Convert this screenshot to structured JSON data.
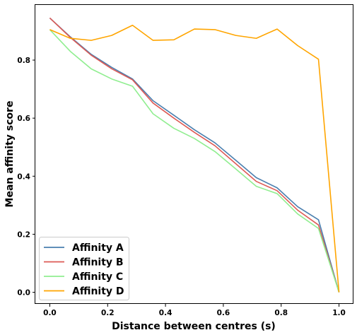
{
  "chart_data": {
    "type": "line",
    "xlabel": "Distance between centres (s)",
    "ylabel": "Mean affinity score",
    "xlim": [
      -0.05,
      1.05
    ],
    "ylim": [
      -0.04,
      0.99
    ],
    "xticks": [
      0.0,
      0.2,
      0.4,
      0.6,
      0.8,
      1.0
    ],
    "xtick_labels": [
      "0.0",
      "0.2",
      "0.4",
      "0.6",
      "0.8",
      "1.0"
    ],
    "yticks": [
      0.0,
      0.2,
      0.4,
      0.6,
      0.8
    ],
    "ytick_labels": [
      "0.0",
      "0.2",
      "0.4",
      "0.6",
      "0.8"
    ],
    "grid": false,
    "legend_position": "lower-left",
    "x": [
      0.0,
      0.071,
      0.143,
      0.214,
      0.286,
      0.357,
      0.429,
      0.5,
      0.571,
      0.643,
      0.714,
      0.786,
      0.857,
      0.929,
      1.0
    ],
    "series": [
      {
        "name": "Affinity A",
        "color": "#4a7faf",
        "values": [
          0.945,
          0.88,
          0.82,
          0.775,
          0.735,
          0.66,
          0.61,
          0.56,
          0.515,
          0.455,
          0.395,
          0.36,
          0.295,
          0.25,
          0.0
        ]
      },
      {
        "name": "Affinity B",
        "color": "#dd5a55",
        "values": [
          0.945,
          0.878,
          0.817,
          0.77,
          0.732,
          0.652,
          0.6,
          0.551,
          0.505,
          0.443,
          0.382,
          0.35,
          0.283,
          0.232,
          0.0
        ]
      },
      {
        "name": "Affinity C",
        "color": "#90ee90",
        "values": [
          0.905,
          0.83,
          0.77,
          0.735,
          0.71,
          0.615,
          0.565,
          0.53,
          0.485,
          0.425,
          0.365,
          0.34,
          0.27,
          0.22,
          0.0
        ]
      },
      {
        "name": "Affinity D",
        "color": "#ffa500",
        "values": [
          0.905,
          0.875,
          0.868,
          0.885,
          0.92,
          0.868,
          0.87,
          0.907,
          0.905,
          0.885,
          0.875,
          0.907,
          0.85,
          0.803,
          0.0
        ]
      }
    ]
  }
}
